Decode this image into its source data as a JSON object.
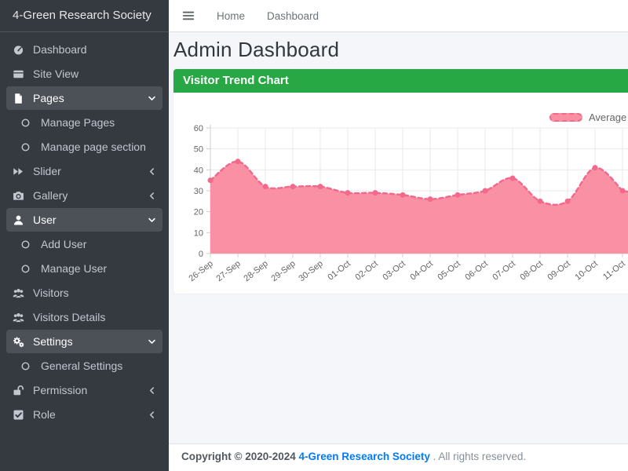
{
  "app": {
    "brand": "4-Green Research Society"
  },
  "navbar": {
    "menu_icon": "bars-icon",
    "links": [
      {
        "label": "Home"
      },
      {
        "label": "Dashboard"
      }
    ]
  },
  "page": {
    "title": "Admin Dashboard"
  },
  "panel": {
    "title": "Visitor Trend Chart"
  },
  "sidebar": {
    "items": [
      {
        "label": "Dashboard",
        "icon": "tachometer",
        "level": "parent",
        "active": false,
        "chevron": null
      },
      {
        "label": "Site View",
        "icon": "window",
        "level": "parent",
        "active": false,
        "chevron": null
      },
      {
        "label": "Pages",
        "icon": "file",
        "level": "parent",
        "active": true,
        "chevron": "down"
      },
      {
        "label": "Manage Pages",
        "icon": "circle",
        "level": "sub",
        "active": false,
        "chevron": null
      },
      {
        "label": "Manage page section",
        "icon": "circle",
        "level": "sub",
        "active": false,
        "chevron": null
      },
      {
        "label": "Slider",
        "icon": "forward",
        "level": "parent",
        "active": false,
        "chevron": "left"
      },
      {
        "label": "Gallery",
        "icon": "camera",
        "level": "parent",
        "active": false,
        "chevron": "left"
      },
      {
        "label": "User",
        "icon": "user",
        "level": "parent",
        "active": true,
        "chevron": "down"
      },
      {
        "label": "Add User",
        "icon": "circle",
        "level": "sub",
        "active": false,
        "chevron": null
      },
      {
        "label": "Manage User",
        "icon": "circle",
        "level": "sub",
        "active": false,
        "chevron": null
      },
      {
        "label": "Visitors",
        "icon": "users",
        "level": "parent",
        "active": false,
        "chevron": null
      },
      {
        "label": "Visitors Details",
        "icon": "users",
        "level": "parent",
        "active": false,
        "chevron": null
      },
      {
        "label": "Settings",
        "icon": "cogs",
        "level": "parent",
        "active": true,
        "chevron": "down"
      },
      {
        "label": "General Settings",
        "icon": "circle",
        "level": "sub",
        "active": false,
        "chevron": null
      },
      {
        "label": "Permission",
        "icon": "unlock",
        "level": "parent",
        "active": false,
        "chevron": "left"
      },
      {
        "label": "Role",
        "icon": "check-square",
        "level": "parent",
        "active": false,
        "chevron": "left"
      }
    ]
  },
  "chart_data": {
    "type": "area",
    "title": "Visitor Trend Chart",
    "categories": [
      "26-Sep",
      "27-Sep",
      "28-Sep",
      "29-Sep",
      "30-Sep",
      "01-Oct",
      "02-Oct",
      "03-Oct",
      "04-Oct",
      "05-Oct",
      "06-Oct",
      "07-Oct",
      "08-Oct",
      "09-Oct",
      "10-Oct",
      "11-Oct"
    ],
    "series": [
      {
        "name": "Average Visitors",
        "values": [
          35,
          44,
          32,
          32,
          32,
          29,
          29,
          28,
          26,
          28,
          30,
          36,
          25,
          25,
          41,
          30
        ]
      }
    ],
    "ylim": [
      0,
      60
    ],
    "yticks": [
      0,
      10,
      20,
      30,
      40,
      50,
      60
    ],
    "grid": true,
    "legend_position": "top-right",
    "line_color": "#f3698b",
    "fill_color": "#fa90a4",
    "line_style": "dashed",
    "point_radius": 3.5
  },
  "footer": {
    "copyright": "Copyright © 2020-2024",
    "brand_link": "4-Green Research Society",
    "suffix": ". All rights reserved."
  },
  "colors": {
    "sidebar_bg": "#343a40",
    "panel_green": "#28a745",
    "link_blue": "#007bff",
    "chart_line": "#f3698b",
    "chart_fill": "#fa90a4",
    "content_bg": "#f4f6f9"
  }
}
